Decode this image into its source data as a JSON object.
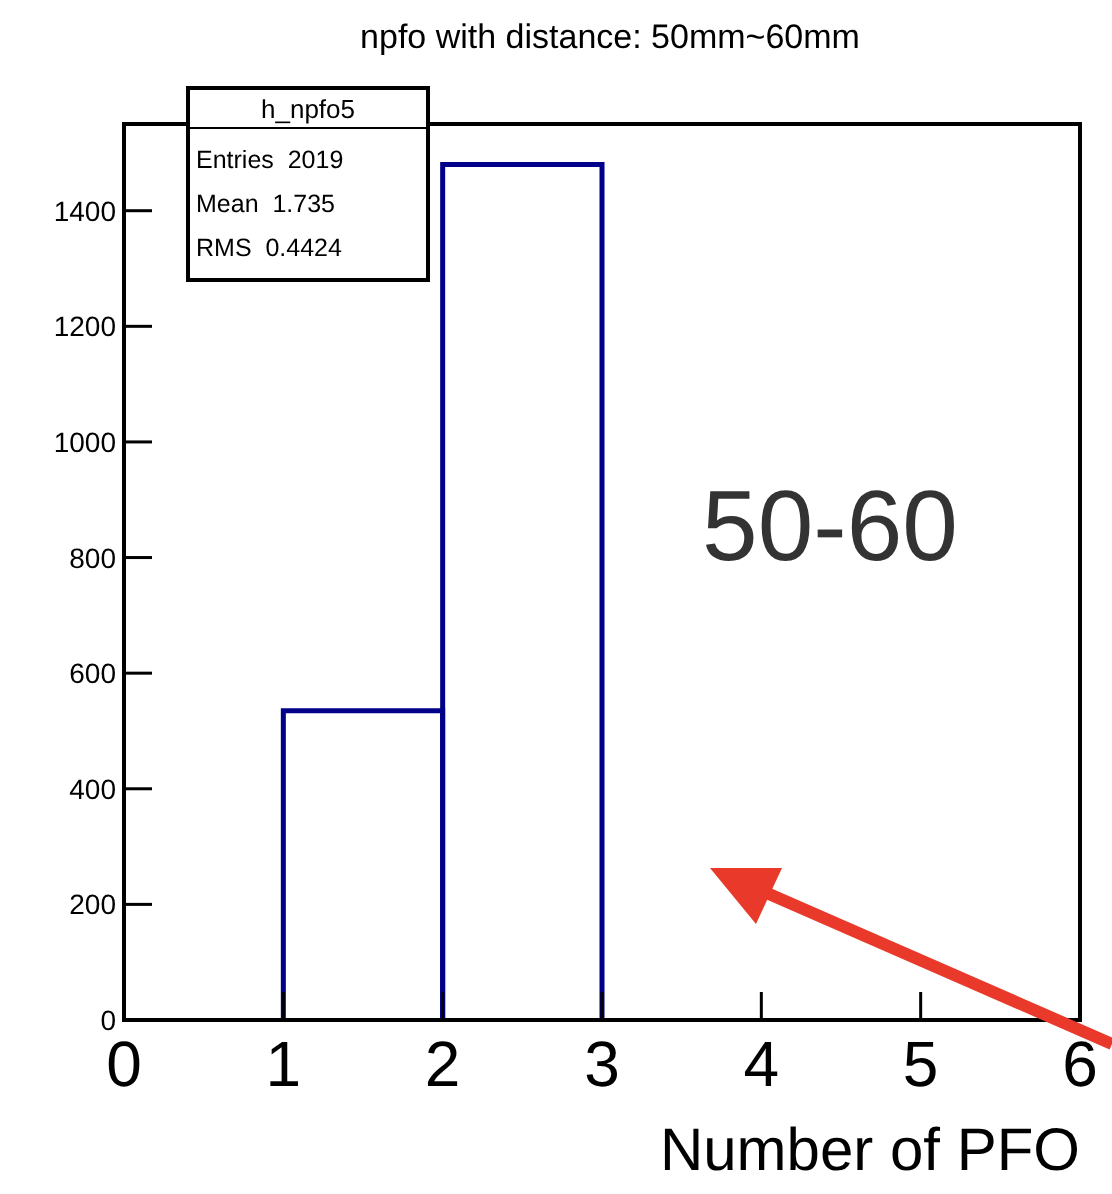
{
  "chart_data": {
    "type": "histogram",
    "title": "npfo  with distance: 50mm~60mm",
    "xlabel": "Number of PFO",
    "bins": [
      1,
      2,
      3
    ],
    "values": [
      535,
      1480
    ],
    "color": "#00008b",
    "xlim": [
      0,
      6
    ],
    "xticks": [
      0,
      1,
      2,
      3,
      4,
      5,
      6
    ],
    "ylim": [
      0,
      1550
    ],
    "yticks": [
      0,
      200,
      400,
      600,
      800,
      1000,
      1200,
      1400
    ],
    "annotations": [
      "h_npfo5",
      "Entries  2019",
      "Mean  1.735",
      "RMS  0.4424",
      "50-60"
    ]
  }
}
